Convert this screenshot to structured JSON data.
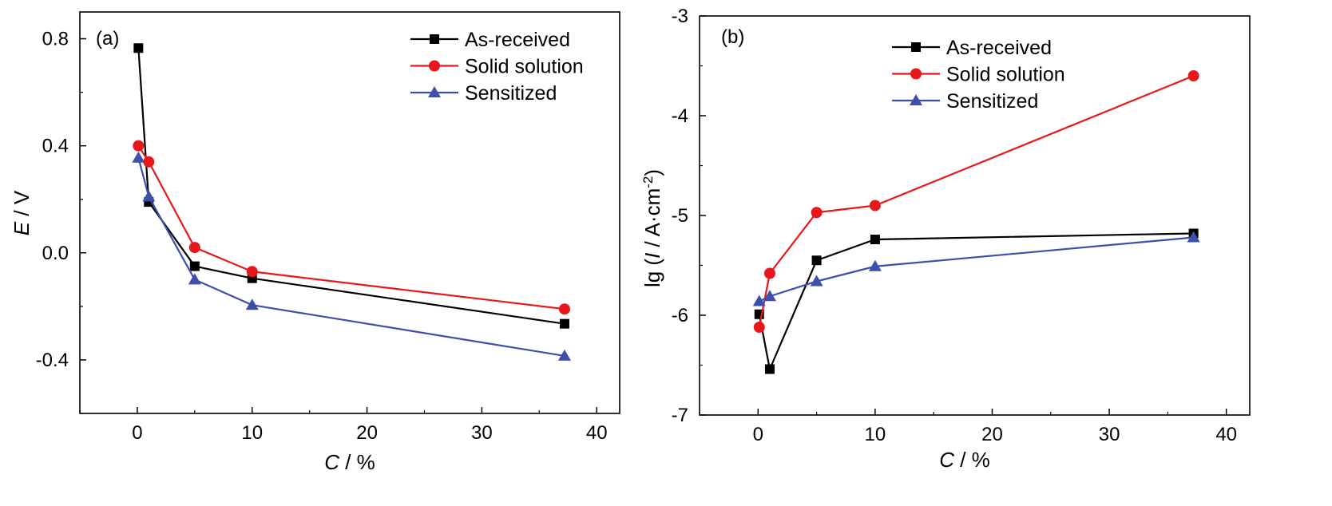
{
  "chart_data": [
    {
      "type": "line",
      "panel_label": "(a)",
      "xlabel": {
        "symbol": "C",
        "rest": " / %"
      },
      "ylabel": {
        "symbol": "E",
        "rest": " / V"
      },
      "xlim": [
        -5,
        42
      ],
      "ylim": [
        -0.6,
        0.9
      ],
      "xticks": [
        0,
        10,
        20,
        30,
        40
      ],
      "xtick_labels": [
        "0",
        "10",
        "20",
        "30",
        "40"
      ],
      "yticks": [
        0.8,
        0.4,
        0.0,
        -0.4
      ],
      "ytick_labels": [
        "0.8",
        "0.4",
        "0.0",
        "-0.4"
      ],
      "grid": false,
      "legend_position": "top-right",
      "series": [
        {
          "name": "As-received",
          "color": "#000000",
          "marker": "square",
          "x": [
            0.1,
            1,
            5,
            10,
            37.2
          ],
          "y": [
            0.765,
            0.19,
            -0.05,
            -0.095,
            -0.265
          ]
        },
        {
          "name": "Solid solution",
          "color": "#e8171c",
          "marker": "circle",
          "x": [
            0.1,
            1,
            5,
            10,
            37.2
          ],
          "y": [
            0.4,
            0.34,
            0.02,
            -0.07,
            -0.21
          ]
        },
        {
          "name": "Sensitized",
          "color": "#3f4ea8",
          "marker": "triangle",
          "x": [
            0.1,
            1,
            5,
            10,
            37.2
          ],
          "y": [
            0.355,
            0.21,
            -0.1,
            -0.195,
            -0.385
          ]
        }
      ]
    },
    {
      "type": "line",
      "panel_label": "(b)",
      "xlabel": {
        "symbol": "C",
        "rest": " / %"
      },
      "ylabel": {
        "prefix": "lg (",
        "symbol": "I",
        "rest": " / A·cm",
        "sup": "-2",
        "suffix": ")"
      },
      "xlim": [
        -5,
        42
      ],
      "ylim": [
        -7,
        -3
      ],
      "xticks": [
        0,
        10,
        20,
        30,
        40
      ],
      "xtick_labels": [
        "0",
        "10",
        "20",
        "30",
        "40"
      ],
      "yticks": [
        -3,
        -4,
        -5,
        -6,
        -7
      ],
      "ytick_labels": [
        "-3",
        "-4",
        "-5",
        "-6",
        "-7"
      ],
      "grid": false,
      "legend_position": "top-center",
      "series": [
        {
          "name": "As-received",
          "color": "#000000",
          "marker": "square",
          "x": [
            0.1,
            1,
            5,
            10,
            37.2
          ],
          "y": [
            -5.99,
            -6.54,
            -5.45,
            -5.24,
            -5.18
          ]
        },
        {
          "name": "Solid solution",
          "color": "#e8171c",
          "marker": "circle",
          "x": [
            0.1,
            1,
            5,
            10,
            37.2
          ],
          "y": [
            -6.12,
            -5.58,
            -4.97,
            -4.9,
            -3.6
          ]
        },
        {
          "name": "Sensitized",
          "color": "#3f4ea8",
          "marker": "triangle",
          "x": [
            0.1,
            1,
            5,
            10,
            37.2
          ],
          "y": [
            -5.86,
            -5.81,
            -5.66,
            -5.51,
            -5.22
          ]
        }
      ]
    }
  ]
}
